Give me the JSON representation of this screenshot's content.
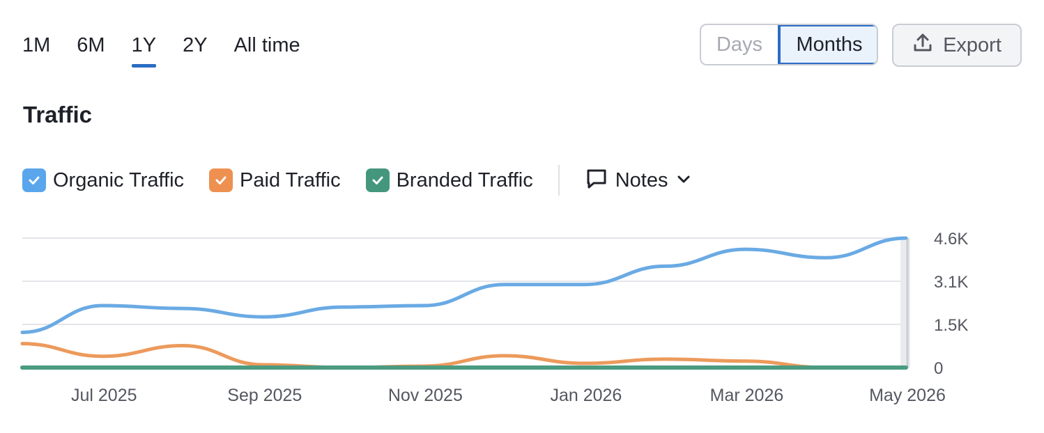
{
  "period_tabs": [
    {
      "label": "1M",
      "active": false
    },
    {
      "label": "6M",
      "active": false
    },
    {
      "label": "1Y",
      "active": true
    },
    {
      "label": "2Y",
      "active": false
    },
    {
      "label": "All time",
      "active": false
    }
  ],
  "granularity": {
    "days_label": "Days",
    "months_label": "Months",
    "selected": "Months"
  },
  "export_label": "Export",
  "colors": {
    "accent": "#2b6cc4",
    "organic": "#6aaae4",
    "paid": "#ec9a5c",
    "branded": "#4a9b80"
  },
  "legend": [
    {
      "label": "Organic Traffic",
      "color": "#5aa6ec",
      "checked": true,
      "icon": "checkbox-checked-icon"
    },
    {
      "label": "Paid Traffic",
      "color": "#ee9150",
      "checked": true,
      "icon": "checkbox-checked-icon"
    },
    {
      "label": "Branded Traffic",
      "color": "#44977c",
      "checked": true,
      "icon": "checkbox-checked-icon"
    }
  ],
  "notes_label": "Notes",
  "chart_data": {
    "type": "line",
    "title": "Traffic",
    "x": [
      "2025-06",
      "2025-07",
      "2025-08",
      "2025-09",
      "2025-10",
      "2025-11",
      "2025-12",
      "2026-01",
      "2026-02",
      "2026-03",
      "2026-04",
      "2026-05"
    ],
    "x_tick_labels": [
      "Jul 2025",
      "Sep 2025",
      "Nov 2025",
      "Jan 2026",
      "Mar 2026",
      "May 2026"
    ],
    "y_tick_labels": [
      "4.6K",
      "3.1K",
      "1.5K",
      "0"
    ],
    "ylim": [
      0,
      4600
    ],
    "grid": true,
    "series": [
      {
        "name": "Organic Traffic",
        "values": [
          1250,
          2200,
          2100,
          1800,
          2150,
          2200,
          2950,
          2950,
          3600,
          4200,
          3900,
          4600
        ]
      },
      {
        "name": "Paid Traffic",
        "values": [
          850,
          400,
          780,
          100,
          0,
          50,
          420,
          150,
          300,
          230,
          0,
          0
        ]
      },
      {
        "name": "Branded Traffic",
        "values": [
          0,
          0,
          0,
          0,
          0,
          0,
          0,
          0,
          0,
          0,
          0,
          0
        ]
      }
    ]
  }
}
